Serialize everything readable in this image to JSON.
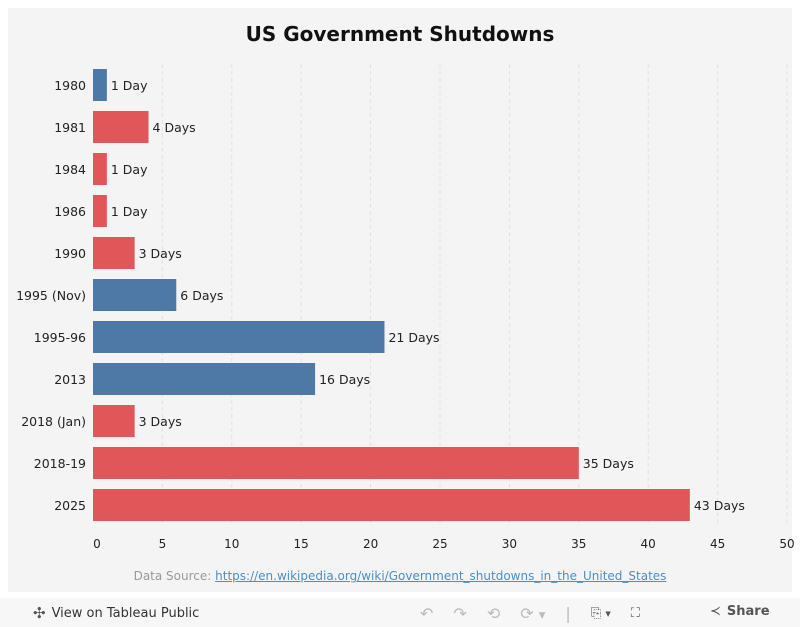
{
  "chart_data": {
    "type": "bar",
    "orientation": "horizontal",
    "title": "US Government Shutdowns",
    "categories": [
      "1980",
      "1981",
      "1984",
      "1986",
      "1990",
      "1995 (Nov)",
      "1995-96",
      "2013",
      "2018 (Jan)",
      "2018-19",
      "2025"
    ],
    "values": [
      1,
      4,
      1,
      1,
      3,
      6,
      21,
      16,
      3,
      35,
      43
    ],
    "data_labels": [
      "1 Day",
      "4 Days",
      "1 Day",
      "1 Day",
      "3 Days",
      "6 Days",
      "21 Days",
      "16 Days",
      "3 Days",
      "35 Days",
      "43 Days"
    ],
    "bar_colors": [
      "#4e79a7",
      "#e15759",
      "#e15759",
      "#e15759",
      "#e15759",
      "#4e79a7",
      "#4e79a7",
      "#4e79a7",
      "#e15759",
      "#e15759",
      "#e15759"
    ],
    "xlim": [
      0,
      50
    ],
    "x_ticks": [
      0,
      5,
      10,
      15,
      20,
      25,
      30,
      35,
      40,
      45,
      50
    ],
    "grid": "vertical dashed",
    "legend": "none"
  },
  "source": {
    "label": "Data Source:",
    "url": "https://en.wikipedia.org/wiki/Government_shutdowns_in_the_United_States"
  },
  "toolbar": {
    "view_label": "View on Tableau Public",
    "share_label": "Share"
  }
}
